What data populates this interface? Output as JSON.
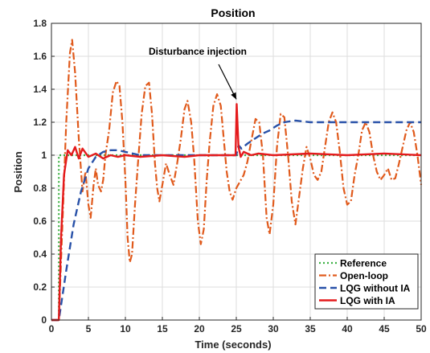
{
  "chart_data": {
    "type": "line",
    "title": "Position",
    "xlabel": "Time (seconds)",
    "ylabel": "Position",
    "xlim": [
      0,
      50
    ],
    "ylim": [
      0,
      1.8
    ],
    "xticks": [
      0,
      5,
      10,
      15,
      20,
      25,
      30,
      35,
      40,
      45,
      50
    ],
    "yticks": [
      0,
      0.2,
      0.4,
      0.6,
      0.8,
      1,
      1.2,
      1.4,
      1.6,
      1.8
    ],
    "grid": true,
    "legend_position": "bottom-right",
    "annotation": {
      "text": "Disturbance injection",
      "x": 25,
      "y": 1.31
    },
    "series": [
      {
        "name": "Reference",
        "color": "#3cb043",
        "style": "dotted",
        "points": [
          [
            0,
            0
          ],
          [
            1,
            0
          ],
          [
            1,
            1
          ],
          [
            50,
            1
          ]
        ]
      },
      {
        "name": "Open-loop",
        "color": "#e05a1c",
        "style": "dashdot",
        "points": [
          [
            0,
            0
          ],
          [
            1,
            0
          ],
          [
            1.5,
            0.6
          ],
          [
            2,
            1.2
          ],
          [
            2.5,
            1.62
          ],
          [
            2.8,
            1.7
          ],
          [
            3.2,
            1.5
          ],
          [
            3.7,
            1.1
          ],
          [
            4.2,
            0.78
          ],
          [
            4.6,
            0.9
          ],
          [
            5.0,
            0.7
          ],
          [
            5.3,
            0.62
          ],
          [
            5.7,
            0.82
          ],
          [
            6.0,
            0.92
          ],
          [
            6.3,
            0.82
          ],
          [
            6.7,
            0.78
          ],
          [
            7.0,
            0.85
          ],
          [
            7.3,
            1.0
          ],
          [
            7.8,
            1.15
          ],
          [
            8.3,
            1.38
          ],
          [
            8.8,
            1.45
          ],
          [
            9.2,
            1.42
          ],
          [
            9.6,
            1.2
          ],
          [
            10.0,
            0.85
          ],
          [
            10.3,
            0.5
          ],
          [
            10.6,
            0.35
          ],
          [
            10.9,
            0.4
          ],
          [
            11.3,
            0.7
          ],
          [
            11.7,
            0.95
          ],
          [
            12.2,
            1.25
          ],
          [
            12.7,
            1.42
          ],
          [
            13.2,
            1.44
          ],
          [
            13.6,
            1.25
          ],
          [
            14.0,
            0.95
          ],
          [
            14.3,
            0.8
          ],
          [
            14.6,
            0.72
          ],
          [
            15.0,
            0.82
          ],
          [
            15.5,
            0.95
          ],
          [
            16.0,
            0.88
          ],
          [
            16.5,
            0.82
          ],
          [
            17.0,
            0.95
          ],
          [
            17.5,
            1.1
          ],
          [
            18.0,
            1.28
          ],
          [
            18.4,
            1.33
          ],
          [
            18.9,
            1.2
          ],
          [
            19.3,
            0.98
          ],
          [
            19.8,
            0.6
          ],
          [
            20.2,
            0.46
          ],
          [
            20.6,
            0.55
          ],
          [
            21.0,
            0.85
          ],
          [
            21.4,
            1.08
          ],
          [
            21.9,
            1.3
          ],
          [
            22.4,
            1.37
          ],
          [
            22.9,
            1.3
          ],
          [
            23.3,
            1.1
          ],
          [
            23.7,
            0.9
          ],
          [
            24.1,
            0.78
          ],
          [
            24.5,
            0.73
          ],
          [
            25.0,
            0.8
          ],
          [
            25.5,
            0.84
          ],
          [
            26.0,
            0.88
          ],
          [
            26.5,
            0.96
          ],
          [
            27.0,
            1.08
          ],
          [
            27.6,
            1.22
          ],
          [
            28.1,
            1.2
          ],
          [
            28.6,
            1.0
          ],
          [
            29.1,
            0.62
          ],
          [
            29.5,
            0.52
          ],
          [
            30.0,
            0.7
          ],
          [
            30.5,
            1.05
          ],
          [
            31.0,
            1.25
          ],
          [
            31.5,
            1.23
          ],
          [
            32.0,
            1.0
          ],
          [
            32.5,
            0.72
          ],
          [
            33.0,
            0.58
          ],
          [
            33.5,
            0.75
          ],
          [
            34.0,
            0.92
          ],
          [
            34.5,
            1.05
          ],
          [
            35.0,
            0.98
          ],
          [
            35.5,
            0.88
          ],
          [
            36.0,
            0.85
          ],
          [
            36.5,
            0.9
          ],
          [
            37.0,
            1.05
          ],
          [
            37.5,
            1.2
          ],
          [
            38.0,
            1.26
          ],
          [
            38.5,
            1.2
          ],
          [
            39.0,
            1.02
          ],
          [
            39.5,
            0.8
          ],
          [
            40.0,
            0.7
          ],
          [
            40.5,
            0.72
          ],
          [
            41.0,
            0.88
          ],
          [
            41.5,
            1.0
          ],
          [
            42.0,
            1.15
          ],
          [
            42.5,
            1.2
          ],
          [
            43.0,
            1.14
          ],
          [
            43.5,
            1.0
          ],
          [
            44.0,
            0.9
          ],
          [
            44.5,
            0.85
          ],
          [
            45.0,
            0.88
          ],
          [
            45.5,
            0.92
          ],
          [
            46.0,
            0.85
          ],
          [
            46.5,
            0.86
          ],
          [
            47.0,
            0.95
          ],
          [
            47.5,
            1.05
          ],
          [
            48.0,
            1.15
          ],
          [
            48.5,
            1.2
          ],
          [
            49.0,
            1.14
          ],
          [
            49.5,
            1.0
          ],
          [
            50.0,
            0.82
          ]
        ]
      },
      {
        "name": "LQG without IA",
        "color": "#2851a8",
        "style": "dashed",
        "points": [
          [
            0,
            0
          ],
          [
            1,
            0
          ],
          [
            2,
            0.3
          ],
          [
            3,
            0.58
          ],
          [
            4,
            0.78
          ],
          [
            5,
            0.92
          ],
          [
            6,
            0.99
          ],
          [
            7,
            1.02
          ],
          [
            8,
            1.03
          ],
          [
            9,
            1.03
          ],
          [
            10,
            1.02
          ],
          [
            12,
            1.0
          ],
          [
            15,
            1.0
          ],
          [
            20,
            1.0
          ],
          [
            25,
            1.0
          ],
          [
            25.3,
            1.06
          ],
          [
            25.7,
            1.04
          ],
          [
            26.5,
            1.07
          ],
          [
            27.5,
            1.1
          ],
          [
            28.5,
            1.13
          ],
          [
            29.5,
            1.15
          ],
          [
            30.5,
            1.18
          ],
          [
            31.5,
            1.2
          ],
          [
            33,
            1.21
          ],
          [
            35,
            1.2
          ],
          [
            40,
            1.2
          ],
          [
            45,
            1.2
          ],
          [
            50,
            1.2
          ]
        ]
      },
      {
        "name": "LQG with IA",
        "color": "#e41a1c",
        "style": "solid",
        "points": [
          [
            0,
            0
          ],
          [
            1,
            0
          ],
          [
            1.3,
            0.5
          ],
          [
            1.7,
            0.88
          ],
          [
            2.2,
            1.03
          ],
          [
            2.7,
            1.0
          ],
          [
            3.2,
            1.05
          ],
          [
            3.7,
            0.98
          ],
          [
            4.2,
            1.04
          ],
          [
            5,
            0.99
          ],
          [
            6,
            1.01
          ],
          [
            7,
            0.98
          ],
          [
            8,
            1.0
          ],
          [
            9,
            0.99
          ],
          [
            10,
            1.0
          ],
          [
            12,
            0.99
          ],
          [
            15,
            1.0
          ],
          [
            18,
            0.99
          ],
          [
            20,
            1.0
          ],
          [
            24,
            1.0
          ],
          [
            24.9,
            1.0
          ],
          [
            25.05,
            1.31
          ],
          [
            25.3,
            1.05
          ],
          [
            25.6,
            0.99
          ],
          [
            26,
            1.02
          ],
          [
            27,
            1.0
          ],
          [
            28,
            1.01
          ],
          [
            30,
            1.0
          ],
          [
            35,
            1.01
          ],
          [
            40,
            1.0
          ],
          [
            45,
            1.01
          ],
          [
            50,
            1.0
          ]
        ]
      }
    ]
  }
}
